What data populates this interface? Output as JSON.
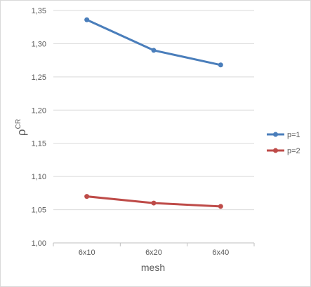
{
  "chart_data": {
    "type": "line",
    "title": "",
    "xlabel": "mesh",
    "ylabel": "ρ",
    "ylabel_superscript": "CR",
    "categories": [
      "6x10",
      "6x20",
      "6x40"
    ],
    "ylim": [
      1.0,
      1.35
    ],
    "yticks": [
      1.0,
      1.05,
      1.1,
      1.15,
      1.2,
      1.25,
      1.3,
      1.35
    ],
    "ytick_labels": [
      "1,00",
      "1,05",
      "1,10",
      "1,15",
      "1,20",
      "1,25",
      "1,30",
      "1,35"
    ],
    "grid": "horizontal",
    "legend_position": "right",
    "series": [
      {
        "name": "p=1",
        "color": "#4a7ebb",
        "values": [
          1.336,
          1.29,
          1.268
        ]
      },
      {
        "name": "p=2",
        "color": "#be4b48",
        "values": [
          1.07,
          1.06,
          1.055
        ]
      }
    ]
  }
}
